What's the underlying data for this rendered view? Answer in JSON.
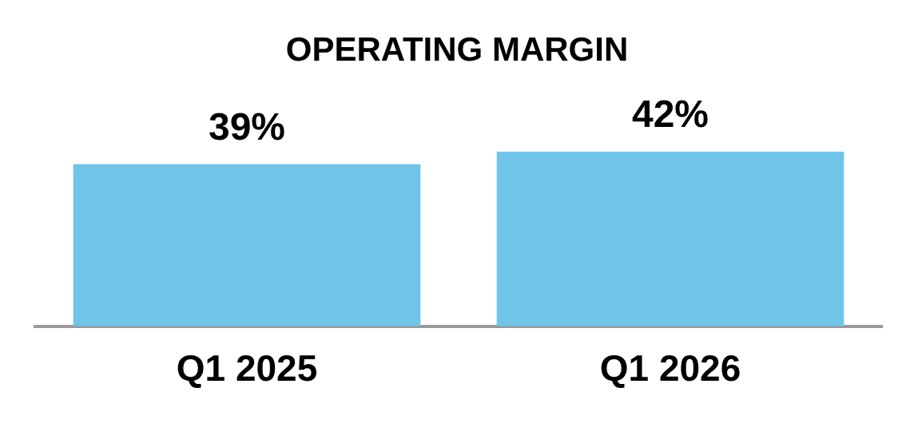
{
  "chart_data": {
    "type": "bar",
    "title": "OPERATING MARGIN",
    "categories": [
      "Q1 2025",
      "Q1 2026"
    ],
    "values": [
      39,
      42
    ],
    "color": "#70c4e8",
    "value_labels": [
      "39%",
      "42%"
    ]
  }
}
